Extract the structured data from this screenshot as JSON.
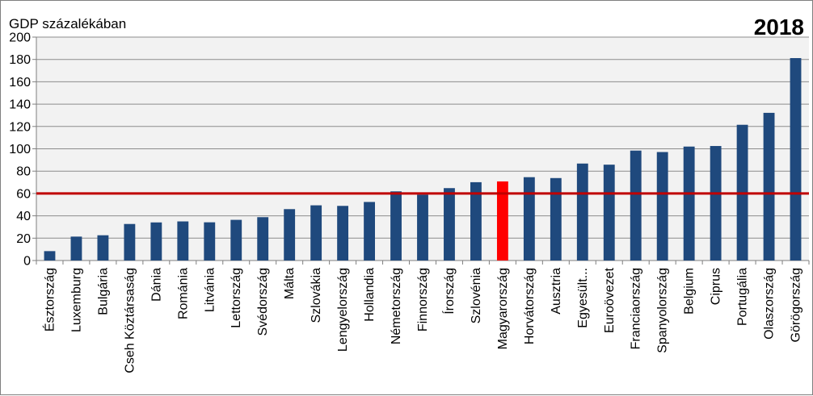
{
  "chart_data": {
    "type": "bar",
    "title": "2018",
    "ylabel": "GDP százalékában",
    "xlabel": "",
    "ylim": [
      0,
      200
    ],
    "yticks": [
      0,
      20,
      40,
      60,
      80,
      100,
      120,
      140,
      160,
      180,
      200
    ],
    "grid": true,
    "reference_line": {
      "value": 60,
      "color": "#c00000"
    },
    "bar_color": "#1f497d",
    "highlight_color": "#ff0000",
    "highlight_category": "Magyarország",
    "categories": [
      "Észtország",
      "Luxemburg",
      "Bulgária",
      "Cseh Köztársaság",
      "Dánia",
      "Románia",
      "Litvánia",
      "Lettország",
      "Svédország",
      "Málta",
      "Szlovákia",
      "Lengyelország",
      "Hollandia",
      "Németország",
      "Finnország",
      "Írország",
      "Szlovénia",
      "Magyarország",
      "Horvátország",
      "Ausztria",
      "Egyesült...",
      "Euroövezet",
      "Franciaország",
      "Spanyolország",
      "Belgium",
      "Ciprus",
      "Portugália",
      "Olaszország",
      "Görögország"
    ],
    "values": [
      8.4,
      21.4,
      22.6,
      32.7,
      34.1,
      35.0,
      34.2,
      36.4,
      38.8,
      46.0,
      49.4,
      48.9,
      52.4,
      61.9,
      58.9,
      64.8,
      70.1,
      70.8,
      74.6,
      73.8,
      86.8,
      85.8,
      98.4,
      97.1,
      102.0,
      102.5,
      121.5,
      132.2,
      181.2
    ]
  }
}
